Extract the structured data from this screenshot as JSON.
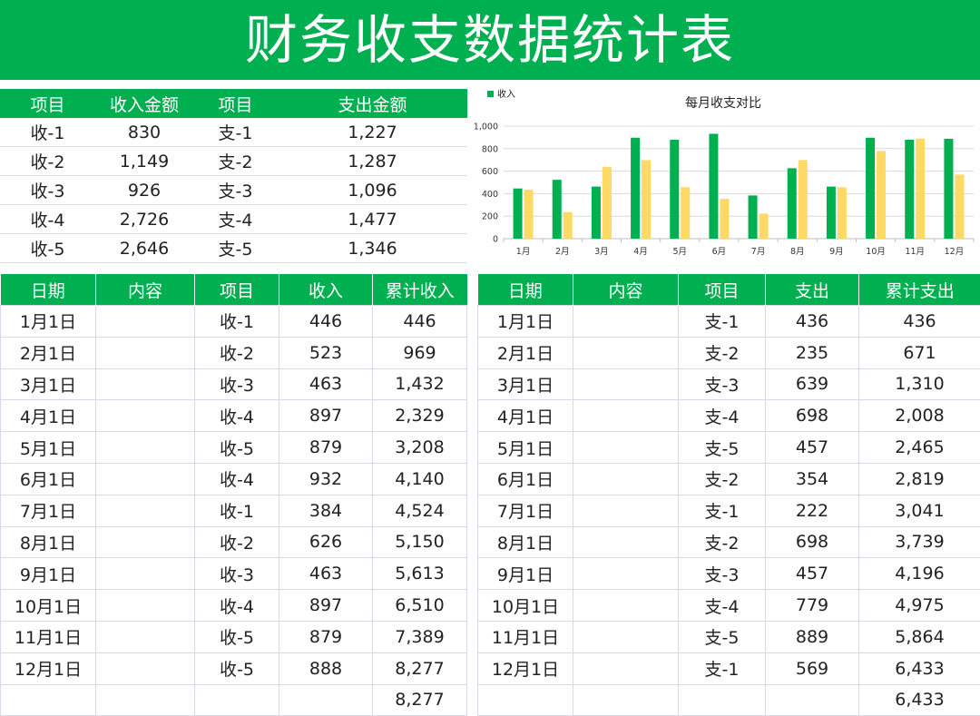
{
  "title": "财务收支数据统计表",
  "summary": {
    "headers": [
      "项目",
      "收入金额",
      "项目",
      "支出金额"
    ],
    "rows": [
      [
        "收-1",
        "830",
        "支-1",
        "1,227"
      ],
      [
        "收-2",
        "1,149",
        "支-2",
        "1,287"
      ],
      [
        "收-3",
        "926",
        "支-3",
        "1,096"
      ],
      [
        "收-4",
        "2,726",
        "支-4",
        "1,477"
      ],
      [
        "收-5",
        "2,646",
        "支-5",
        "1,346"
      ]
    ]
  },
  "income": {
    "headers": [
      "日期",
      "内容",
      "项目",
      "收入",
      "累计收入"
    ],
    "rows": [
      [
        "1月1日",
        "",
        "收-1",
        "446",
        "446"
      ],
      [
        "2月1日",
        "",
        "收-2",
        "523",
        "969"
      ],
      [
        "3月1日",
        "",
        "收-3",
        "463",
        "1,432"
      ],
      [
        "4月1日",
        "",
        "收-4",
        "897",
        "2,329"
      ],
      [
        "5月1日",
        "",
        "收-5",
        "879",
        "3,208"
      ],
      [
        "6月1日",
        "",
        "收-4",
        "932",
        "4,140"
      ],
      [
        "7月1日",
        "",
        "收-1",
        "384",
        "4,524"
      ],
      [
        "8月1日",
        "",
        "收-2",
        "626",
        "5,150"
      ],
      [
        "9月1日",
        "",
        "收-3",
        "463",
        "5,613"
      ],
      [
        "10月1日",
        "",
        "收-4",
        "897",
        "6,510"
      ],
      [
        "11月1日",
        "",
        "收-5",
        "879",
        "7,389"
      ],
      [
        "12月1日",
        "",
        "收-5",
        "888",
        "8,277"
      ],
      [
        "",
        "",
        "",
        "",
        "8,277"
      ]
    ]
  },
  "expense": {
    "headers": [
      "日期",
      "内容",
      "项目",
      "支出",
      "累计支出"
    ],
    "rows": [
      [
        "1月1日",
        "",
        "支-1",
        "436",
        "436"
      ],
      [
        "2月1日",
        "",
        "支-2",
        "235",
        "671"
      ],
      [
        "3月1日",
        "",
        "支-3",
        "639",
        "1,310"
      ],
      [
        "4月1日",
        "",
        "支-4",
        "698",
        "2,008"
      ],
      [
        "5月1日",
        "",
        "支-5",
        "457",
        "2,465"
      ],
      [
        "6月1日",
        "",
        "支-2",
        "354",
        "2,819"
      ],
      [
        "7月1日",
        "",
        "支-1",
        "222",
        "3,041"
      ],
      [
        "8月1日",
        "",
        "支-2",
        "698",
        "3,739"
      ],
      [
        "9月1日",
        "",
        "支-3",
        "457",
        "4,196"
      ],
      [
        "10月1日",
        "",
        "支-4",
        "779",
        "4,975"
      ],
      [
        "11月1日",
        "",
        "支-5",
        "889",
        "5,864"
      ],
      [
        "12月1日",
        "",
        "支-1",
        "569",
        "6,433"
      ],
      [
        "",
        "",
        "",
        "",
        "6,433"
      ]
    ]
  },
  "colors": {
    "accent": "#00b050",
    "income_bar": "#00b050",
    "expense_bar": "#ffd966",
    "header_text": "#ffffff"
  },
  "chart_data": {
    "type": "bar",
    "title": "每月收支对比",
    "categories": [
      "1月",
      "2月",
      "3月",
      "4月",
      "5月",
      "6月",
      "7月",
      "8月",
      "9月",
      "10月",
      "11月",
      "12月"
    ],
    "series": [
      {
        "name": "收入",
        "values": [
          446,
          523,
          463,
          897,
          879,
          932,
          384,
          626,
          463,
          897,
          879,
          888
        ]
      },
      {
        "values": [
          436,
          235,
          639,
          698,
          457,
          354,
          222,
          698,
          457,
          779,
          889,
          569
        ]
      }
    ],
    "ylim": [
      0,
      1000
    ],
    "yticks": [
      "0",
      "200",
      "400",
      "600",
      "800",
      "1,000"
    ],
    "grid": true,
    "legend": "top-left"
  }
}
